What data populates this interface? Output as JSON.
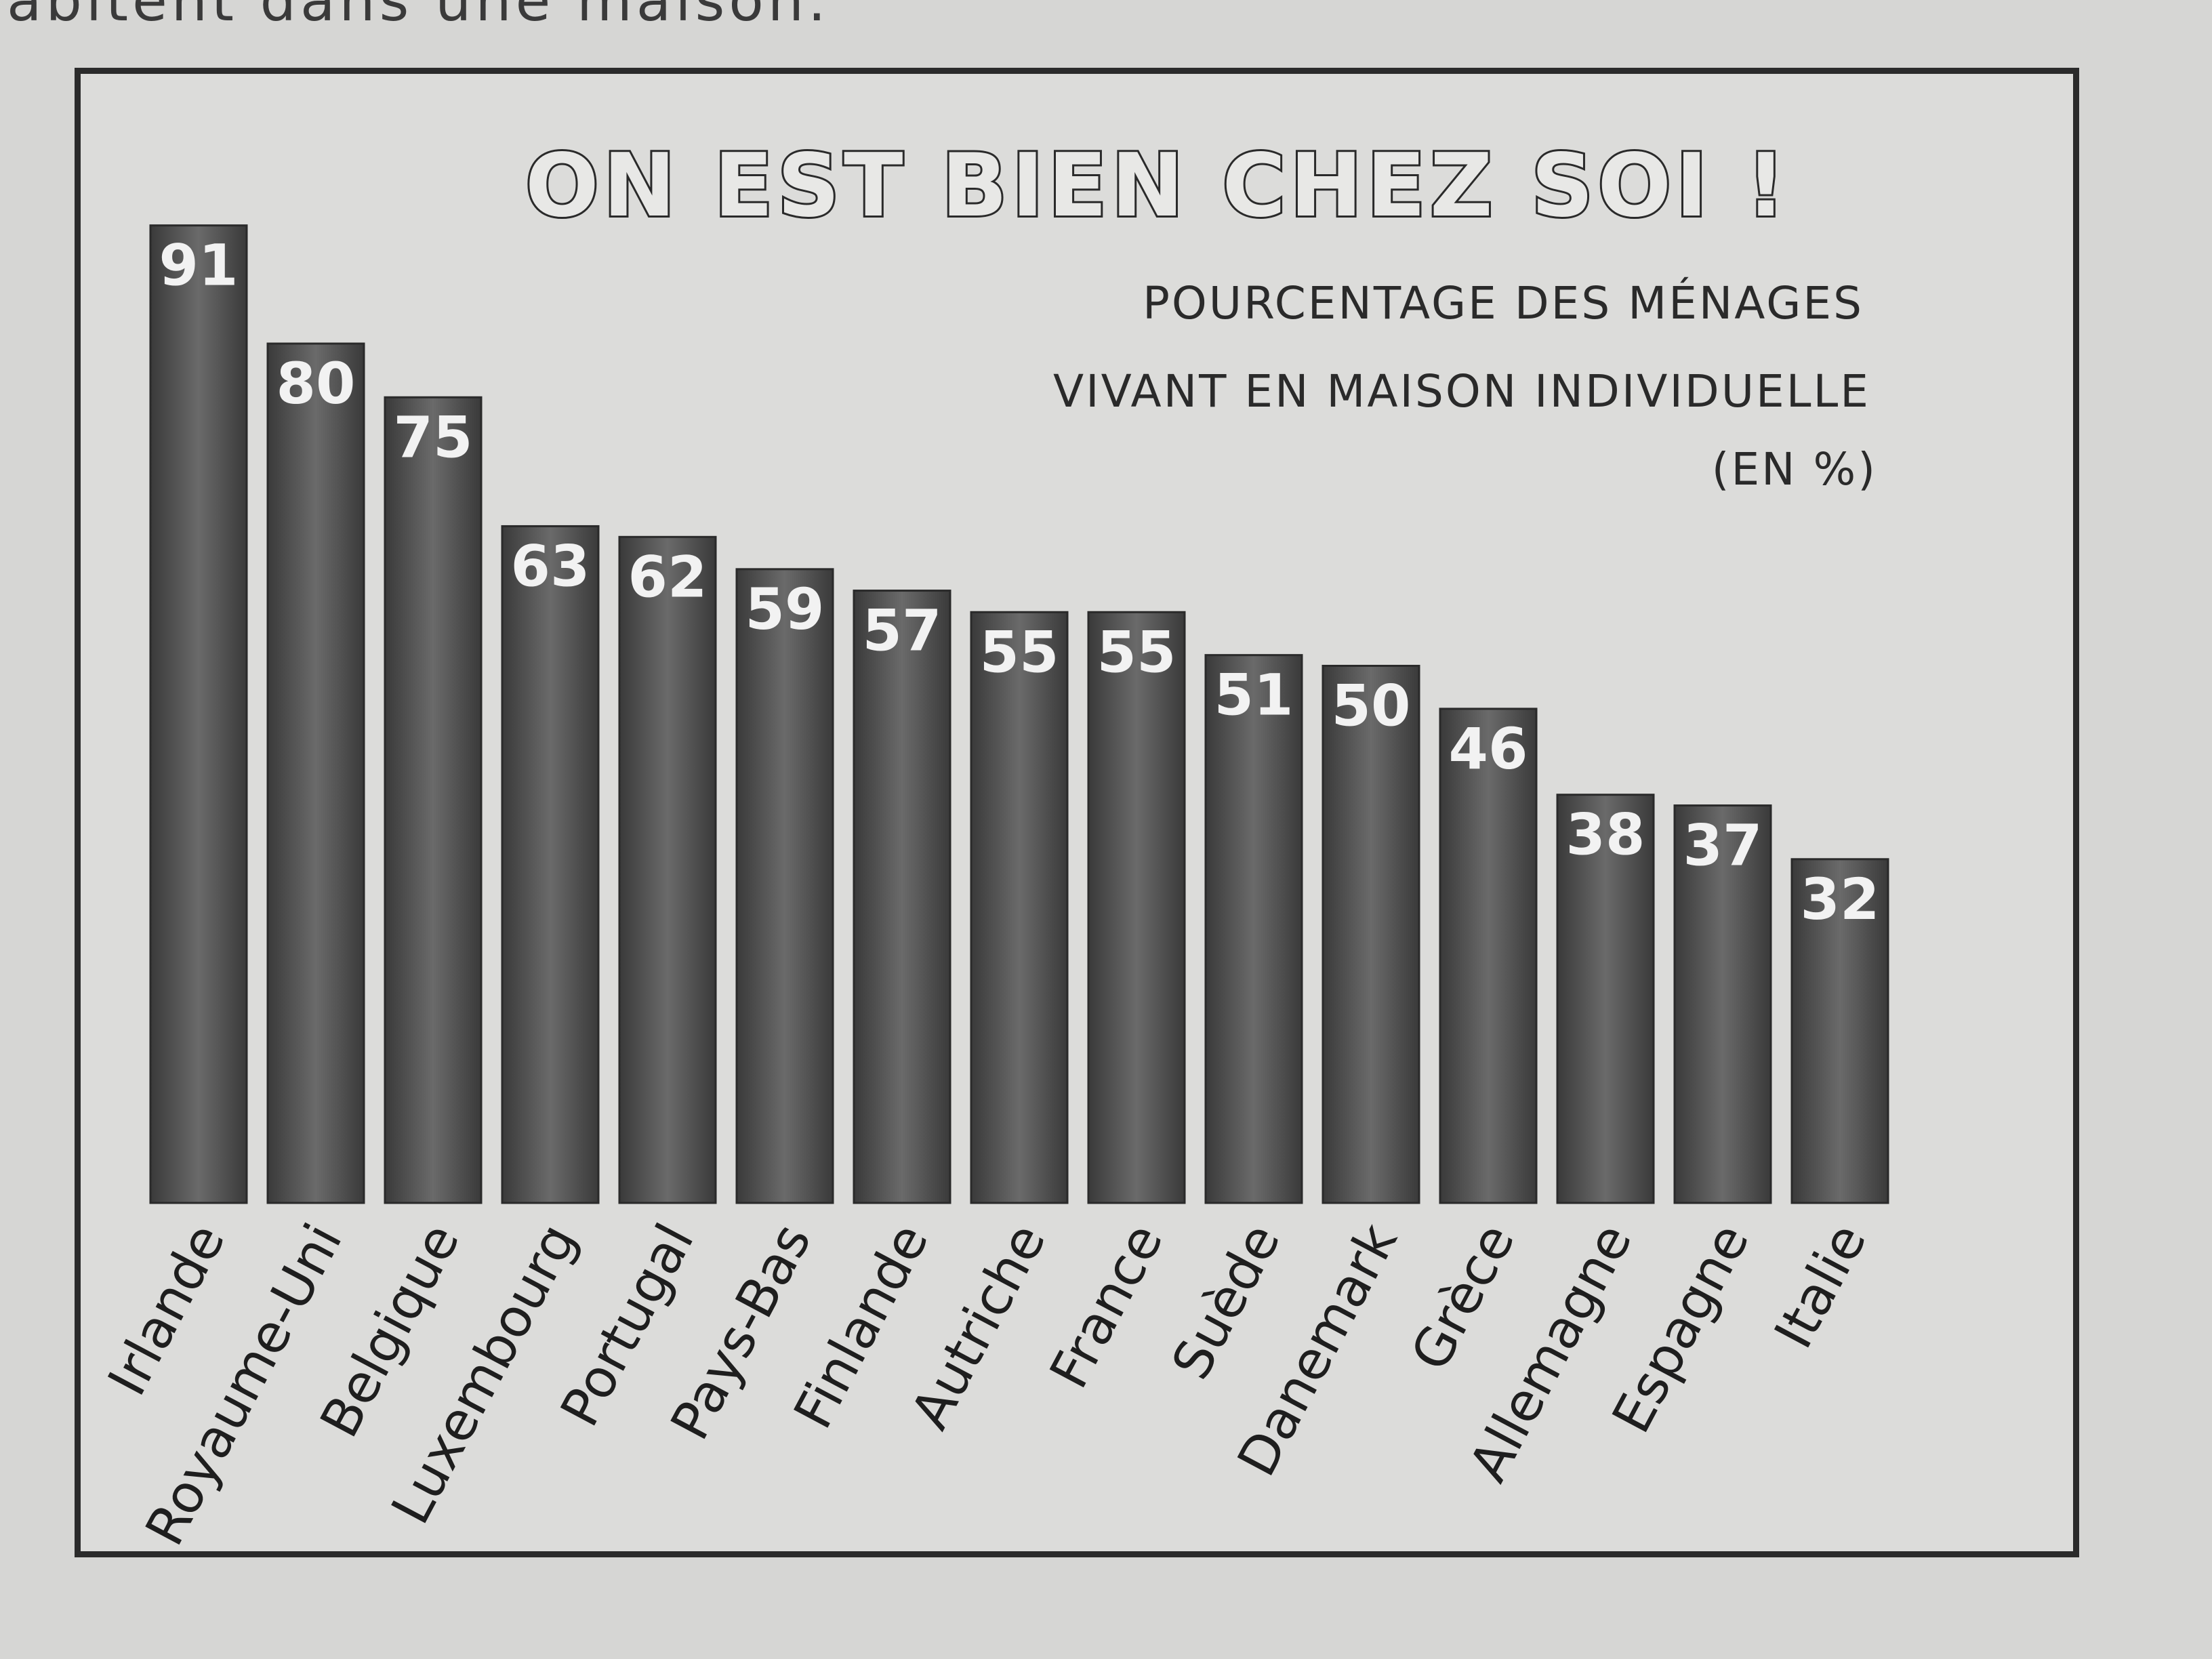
{
  "page": {
    "header_text": "abitent dans une maison."
  },
  "chart_data": {
    "type": "bar",
    "title": "ON EST BIEN CHEZ SOI !",
    "subtitle_lines": [
      "POURCENTAGE DES MÉNAGES",
      "VIVANT EN MAISON INDIVIDUELLE",
      "(EN %)"
    ],
    "categories": [
      "Irlande",
      "Royaume-Uni",
      "Belgique",
      "Luxembourg",
      "Portugal",
      "Pays-Bas",
      "Finlande",
      "Autriche",
      "France",
      "Suède",
      "Danemark",
      "Grèce",
      "Allemagne",
      "Espagne",
      "Italie"
    ],
    "values": [
      91,
      80,
      75,
      63,
      62,
      59,
      57,
      55,
      55,
      51,
      50,
      46,
      38,
      37,
      32
    ],
    "value_labels": [
      "91",
      "80",
      "75",
      "63",
      "62",
      "59",
      "57",
      "55",
      "55",
      "51",
      "50",
      "46",
      "38",
      "37",
      "32"
    ],
    "ylim": [
      0,
      100
    ],
    "grid": false,
    "bar_color": "#4a4a4a"
  }
}
